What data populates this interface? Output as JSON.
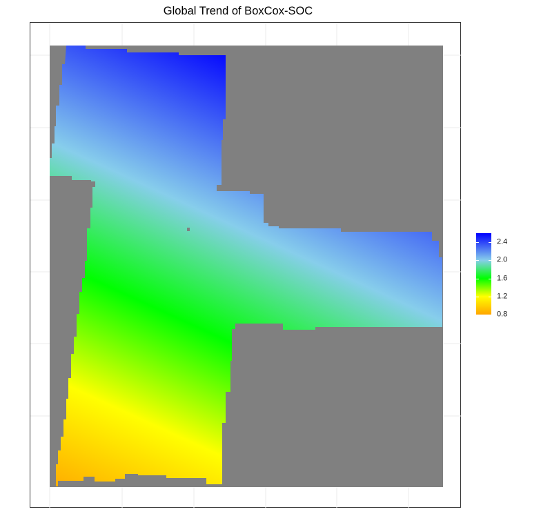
{
  "chart_data": {
    "type": "heatmap",
    "title": "Global Trend of BoxCox-SOC",
    "xlabel": "",
    "ylabel": "",
    "x": [],
    "y": [],
    "values": [],
    "trend_direction": "increases toward upper-right",
    "value_range": [
      0.8,
      2.6
    ],
    "colorbar": {
      "ticks": [
        2.4,
        2.0,
        1.6,
        1.2,
        0.8
      ],
      "tick_labels": [
        "2.4",
        "2.0",
        "1.6",
        "1.2",
        "0.8"
      ],
      "colors": [
        {
          "value": 0.8,
          "color": "#ffa500"
        },
        {
          "value": 1.2,
          "color": "#ffff00"
        },
        {
          "value": 1.6,
          "color": "#00ff00"
        },
        {
          "value": 2.0,
          "color": "#87ceeb"
        },
        {
          "value": 2.6,
          "color": "#0000ff"
        }
      ],
      "placement": "right"
    },
    "masked_color": "#808080",
    "grid": true,
    "grid_color": "#ebebeb"
  }
}
